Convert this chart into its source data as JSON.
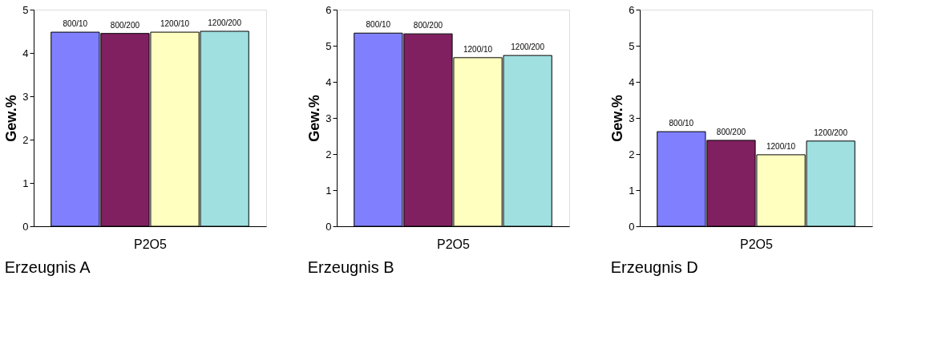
{
  "chart_data": [
    {
      "type": "bar",
      "title": "Erzeugnis A",
      "xlabel": "P2O5",
      "ylabel": "Gew.%",
      "categories": [
        "800/10",
        "800/200",
        "1200/10",
        "1200/200"
      ],
      "ylim": [
        0,
        5
      ],
      "yticks": [
        0,
        1,
        2,
        3,
        4,
        5
      ],
      "grid": false,
      "legend": false,
      "values": [
        4.48,
        4.45,
        4.48,
        4.5
      ],
      "colors": [
        "#8080ff",
        "#802060",
        "#ffffc0",
        "#a0e0e0"
      ]
    },
    {
      "type": "bar",
      "title": "Erzeugnis B",
      "xlabel": "P2O5",
      "ylabel": "Gew.%",
      "categories": [
        "800/10",
        "800/200",
        "1200/10",
        "1200/200"
      ],
      "ylim": [
        0,
        6
      ],
      "yticks": [
        0,
        1,
        2,
        3,
        4,
        5,
        6
      ],
      "grid": false,
      "legend": false,
      "values": [
        5.35,
        5.33,
        4.67,
        4.73
      ],
      "colors": [
        "#8080ff",
        "#802060",
        "#ffffc0",
        "#a0e0e0"
      ]
    },
    {
      "type": "bar",
      "title": "Erzeugnis D",
      "xlabel": "P2O5",
      "ylabel": "Gew.%",
      "categories": [
        "800/10",
        "800/200",
        "1200/10",
        "1200/200"
      ],
      "ylim": [
        0,
        6
      ],
      "yticks": [
        0,
        1,
        2,
        3,
        4,
        5,
        6
      ],
      "grid": false,
      "legend": false,
      "values": [
        2.62,
        2.38,
        1.98,
        2.36
      ],
      "colors": [
        "#8080ff",
        "#802060",
        "#ffffc0",
        "#a0e0e0"
      ]
    }
  ]
}
